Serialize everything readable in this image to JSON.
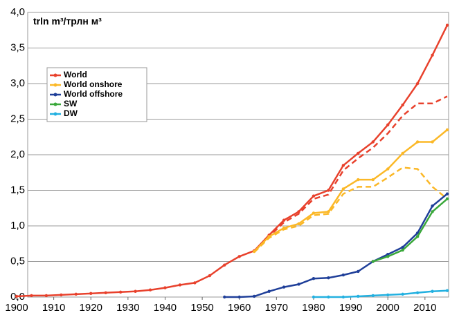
{
  "chart_data": {
    "type": "line",
    "title": "trln m³/трлн м³",
    "x": [
      1900,
      1904,
      1908,
      1912,
      1916,
      1920,
      1924,
      1928,
      1932,
      1936,
      1940,
      1944,
      1948,
      1952,
      1956,
      1960,
      1964,
      1968,
      1972,
      1976,
      1980,
      1984,
      1988,
      1992,
      1996,
      2000,
      2004,
      2008,
      2012,
      2016
    ],
    "series": [
      {
        "name": "World",
        "color": "#e8412c",
        "values": [
          0.01,
          0.02,
          0.02,
          0.03,
          0.04,
          0.05,
          0.06,
          0.07,
          0.08,
          0.1,
          0.13,
          0.17,
          0.2,
          0.3,
          0.45,
          0.57,
          0.65,
          0.87,
          1.08,
          1.2,
          1.42,
          1.5,
          1.85,
          2.02,
          2.18,
          2.42,
          2.7,
          3.0,
          3.4,
          3.82
        ],
        "dashed_values": [
          null,
          null,
          null,
          null,
          null,
          null,
          null,
          null,
          null,
          null,
          null,
          null,
          null,
          null,
          null,
          null,
          0.64,
          0.85,
          1.05,
          1.17,
          1.38,
          1.44,
          1.78,
          1.95,
          2.1,
          2.3,
          2.55,
          2.72,
          2.72,
          2.82
        ]
      },
      {
        "name": "World onshore",
        "color": "#fbb827",
        "values": [
          null,
          null,
          null,
          null,
          null,
          null,
          null,
          null,
          null,
          null,
          null,
          null,
          null,
          null,
          null,
          null,
          0.64,
          0.85,
          0.97,
          1.03,
          1.18,
          1.2,
          1.52,
          1.65,
          1.65,
          1.8,
          2.02,
          2.18,
          2.18,
          2.35
        ],
        "dashed_values": [
          null,
          null,
          null,
          null,
          null,
          null,
          null,
          null,
          null,
          null,
          null,
          null,
          null,
          null,
          null,
          null,
          0.63,
          0.83,
          0.95,
          1.0,
          1.15,
          1.17,
          1.45,
          1.55,
          1.55,
          1.68,
          1.82,
          1.8,
          1.55,
          1.38
        ]
      },
      {
        "name": "World offshore",
        "color": "#1f3f99",
        "values": [
          null,
          null,
          null,
          null,
          null,
          null,
          null,
          null,
          null,
          null,
          null,
          null,
          null,
          null,
          0.0,
          0.0,
          0.01,
          0.08,
          0.14,
          0.18,
          0.26,
          0.27,
          0.31,
          0.36,
          0.5,
          0.6,
          0.7,
          0.9,
          1.28,
          1.45
        ]
      },
      {
        "name": "SW",
        "color": "#3aa83a",
        "values": [
          null,
          null,
          null,
          null,
          null,
          null,
          null,
          null,
          null,
          null,
          null,
          null,
          null,
          null,
          null,
          null,
          null,
          null,
          null,
          null,
          null,
          null,
          null,
          null,
          0.5,
          0.57,
          0.66,
          0.85,
          1.2,
          1.38
        ]
      },
      {
        "name": "DW",
        "color": "#22b0e0",
        "values": [
          null,
          null,
          null,
          null,
          null,
          null,
          null,
          null,
          null,
          null,
          null,
          null,
          null,
          null,
          null,
          null,
          null,
          null,
          null,
          null,
          0.0,
          0.0,
          0.0,
          0.01,
          0.02,
          0.03,
          0.04,
          0.06,
          0.08,
          0.09
        ]
      }
    ],
    "xlim": [
      1900,
      2016
    ],
    "xticks": [
      1900,
      1910,
      1920,
      1930,
      1940,
      1950,
      1960,
      1970,
      1980,
      1990,
      2000,
      2010
    ],
    "ylim": [
      0,
      4
    ],
    "yticks": [
      {
        "value": 0,
        "label": "0,0"
      },
      {
        "value": 0.5,
        "label": "0,5"
      },
      {
        "value": 1,
        "label": "1,0"
      },
      {
        "value": 1.5,
        "label": "1,5"
      },
      {
        "value": 2,
        "label": "2,0"
      },
      {
        "value": 2.5,
        "label": "2,5"
      },
      {
        "value": 3,
        "label": "3,0"
      },
      {
        "value": 3.5,
        "label": "3,5"
      },
      {
        "value": 4,
        "label": "4,0"
      }
    ],
    "grid": true,
    "legend": "upper left"
  }
}
